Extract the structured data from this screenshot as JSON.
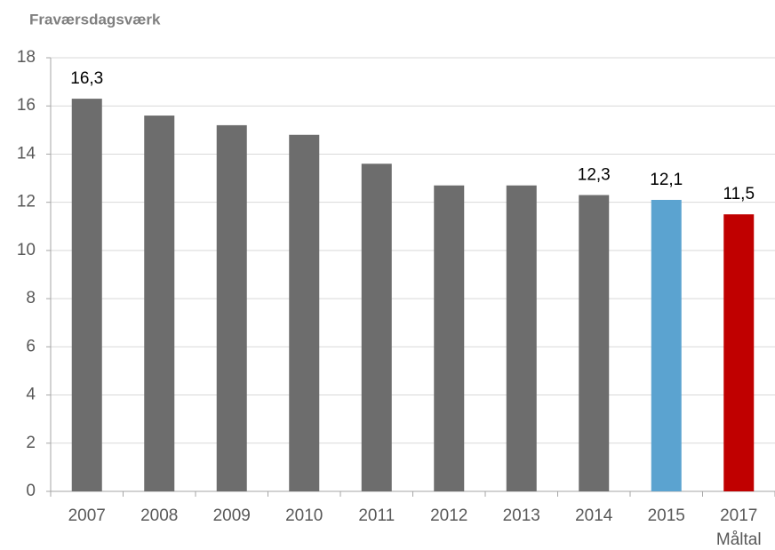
{
  "chart_data": {
    "type": "bar",
    "title": "Fraværsdagsværk",
    "categories": [
      "2007",
      "2008",
      "2009",
      "2010",
      "2011",
      "2012",
      "2013",
      "2014",
      "2015",
      "2017"
    ],
    "category_notes": [
      null,
      null,
      null,
      null,
      null,
      null,
      null,
      null,
      null,
      "Måltal"
    ],
    "values": [
      16.3,
      15.6,
      15.2,
      14.8,
      13.6,
      12.7,
      12.7,
      12.3,
      12.1,
      11.5
    ],
    "value_labels": [
      "16,3",
      null,
      null,
      null,
      null,
      null,
      null,
      "12,3",
      "12,1",
      "11,5"
    ],
    "colors": [
      "#6d6d6d",
      "#6d6d6d",
      "#6d6d6d",
      "#6d6d6d",
      "#6d6d6d",
      "#6d6d6d",
      "#6d6d6d",
      "#6d6d6d",
      "#5ba3d0",
      "#c00000"
    ],
    "ylim": [
      0,
      18
    ],
    "yticks": [
      0,
      2,
      4,
      6,
      8,
      10,
      12,
      14,
      16,
      18
    ],
    "grid": true
  }
}
